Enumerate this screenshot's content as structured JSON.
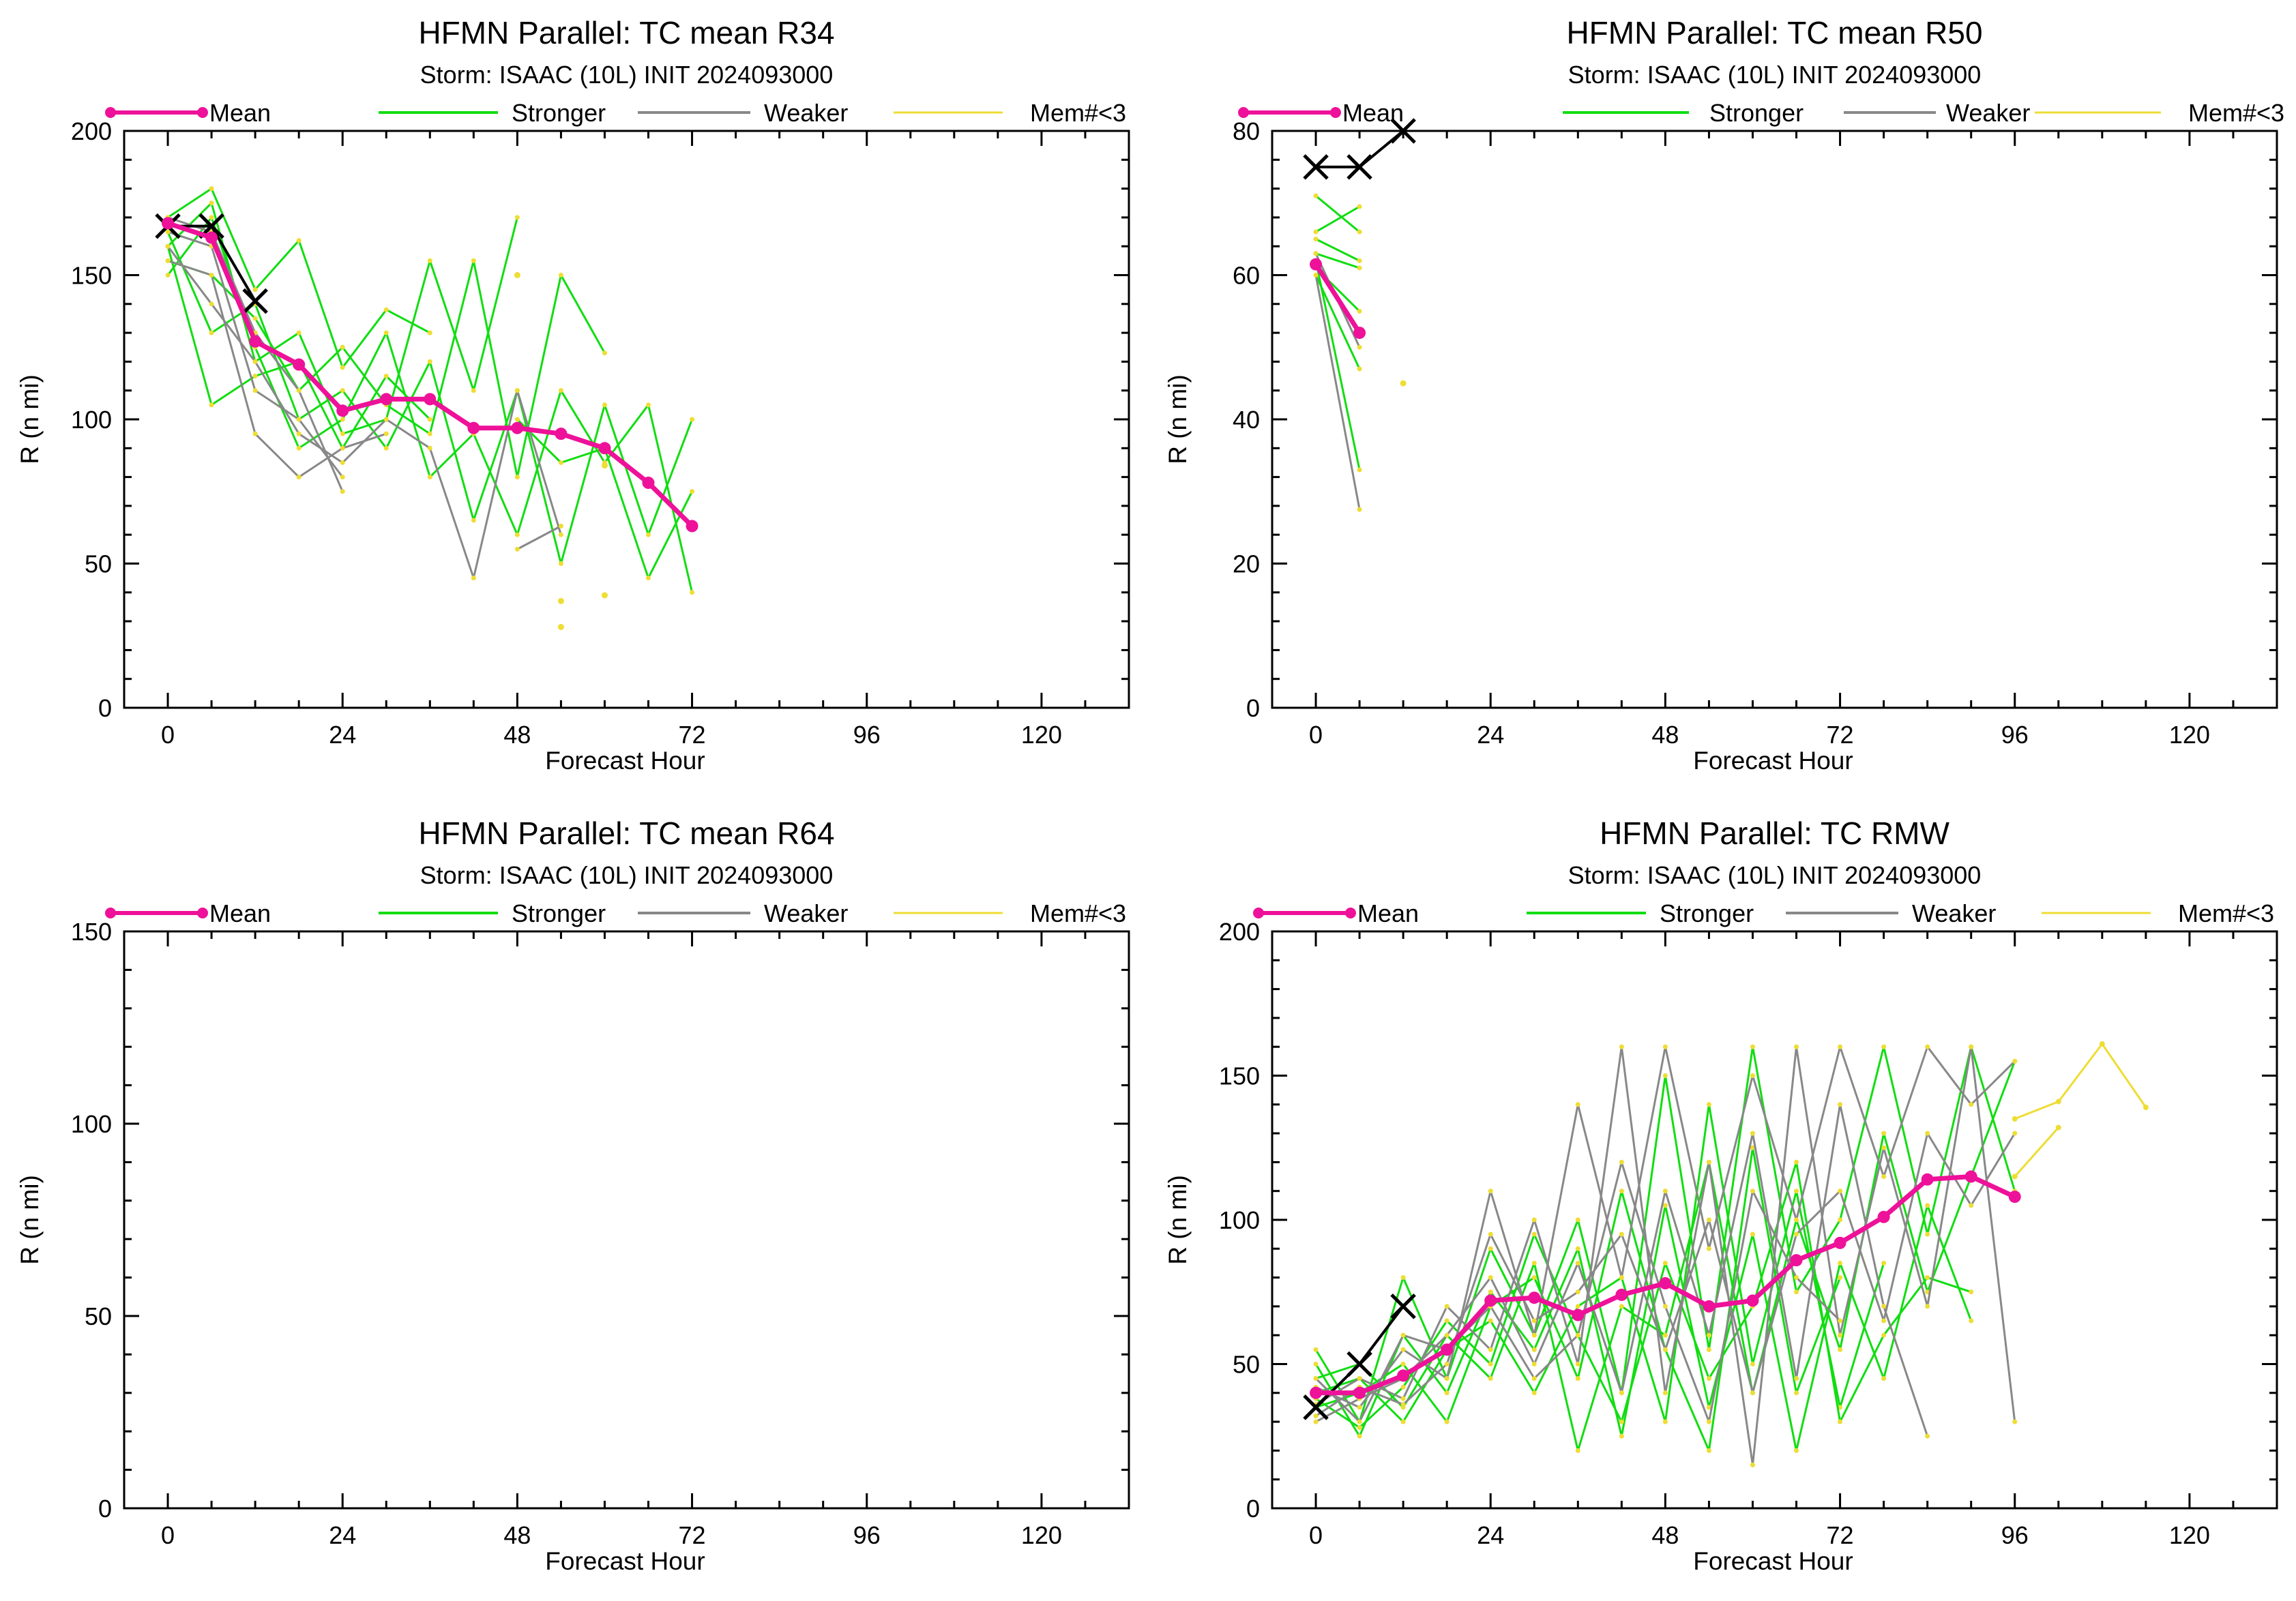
{
  "legend": {
    "mean": "Mean",
    "stronger": "Stronger",
    "weaker": "Weaker",
    "few": "Mem#<3"
  },
  "colors": {
    "mean": "#ee1199",
    "stronger": "#11dd11",
    "weaker": "#888888",
    "few": "#eedd33",
    "observed": "#000000"
  },
  "chart_data": [
    {
      "type": "line",
      "title": "HFMN Parallel: TC mean R34",
      "subtitle": "Storm: ISAAC (10L) INIT 2024093000",
      "xlabel": "Forecast Hour",
      "ylabel": "R (n mi)",
      "xlim": [
        -6,
        132
      ],
      "ylim": [
        0,
        200
      ],
      "xticks": [
        "0",
        "24",
        "48",
        "72",
        "96",
        "120"
      ],
      "yticks": [
        "0",
        "50",
        "100",
        "150",
        "200"
      ],
      "series": [
        {
          "name": "Mean",
          "x": [
            0,
            6,
            12,
            18,
            24,
            30,
            36,
            42,
            48,
            54,
            60,
            66,
            72
          ],
          "y": [
            168,
            163,
            127,
            119,
            103,
            107,
            107,
            97,
            97,
            95,
            90,
            78,
            63
          ]
        }
      ],
      "observed": {
        "x": [
          0,
          6,
          12
        ],
        "y": [
          167,
          167,
          141
        ]
      },
      "members": [
        {
          "color": "stronger",
          "x": [
            0,
            6,
            12,
            18,
            24,
            30,
            36
          ],
          "y": [
            170,
            180,
            145,
            162,
            118,
            138,
            130
          ]
        },
        {
          "color": "stronger",
          "x": [
            0,
            6,
            12,
            18,
            24,
            30,
            36,
            42,
            48
          ],
          "y": [
            160,
            175,
            120,
            130,
            95,
            100,
            155,
            110,
            170
          ]
        },
        {
          "color": "stronger",
          "x": [
            0,
            6,
            12,
            18,
            24,
            30,
            36,
            42,
            48,
            54,
            60
          ],
          "y": [
            155,
            150,
            135,
            110,
            125,
            105,
            95,
            155,
            80,
            150,
            123
          ]
        },
        {
          "color": "stronger",
          "x": [
            0,
            6,
            12,
            18,
            24,
            30,
            36,
            42,
            48,
            54,
            60,
            66,
            72
          ],
          "y": [
            165,
            130,
            140,
            100,
            110,
            90,
            120,
            65,
            110,
            50,
            105,
            60,
            100
          ]
        },
        {
          "color": "stronger",
          "x": [
            0,
            6,
            12,
            18,
            24,
            30,
            36,
            42,
            48,
            54,
            60,
            66,
            72
          ],
          "y": [
            150,
            170,
            125,
            90,
            100,
            130,
            80,
            95,
            60,
            110,
            85,
            105,
            40
          ]
        },
        {
          "color": "stronger",
          "x": [
            0,
            6,
            12,
            18,
            24,
            30,
            36
          ],
          "y": [
            160,
            105,
            115,
            120,
            90,
            115,
            100
          ]
        },
        {
          "color": "stronger",
          "x": [
            48,
            54,
            60,
            66,
            72
          ],
          "y": [
            100,
            85,
            90,
            45,
            75
          ]
        },
        {
          "color": "weaker",
          "x": [
            0,
            6,
            12,
            18,
            24,
            30
          ],
          "y": [
            155,
            150,
            95,
            80,
            90,
            95
          ]
        },
        {
          "color": "weaker",
          "x": [
            0,
            6,
            12,
            18,
            24
          ],
          "y": [
            165,
            160,
            110,
            100,
            80
          ]
        },
        {
          "color": "weaker",
          "x": [
            0,
            6,
            12,
            18,
            24,
            30,
            36,
            42,
            48,
            54
          ],
          "y": [
            160,
            140,
            120,
            95,
            85,
            100,
            90,
            45,
            110,
            60
          ]
        },
        {
          "color": "weaker",
          "x": [
            0,
            6,
            12,
            18,
            24
          ],
          "y": [
            170,
            165,
            130,
            110,
            75
          ]
        },
        {
          "color": "weaker",
          "x": [
            48,
            54
          ],
          "y": [
            55,
            63
          ]
        }
      ],
      "few_points": {
        "x": [
          48,
          54,
          54,
          60,
          60
        ],
        "y": [
          150,
          37,
          28,
          39,
          84
        ]
      }
    },
    {
      "type": "line",
      "title": "HFMN Parallel: TC mean R50",
      "subtitle": "Storm: ISAAC (10L) INIT 2024093000",
      "xlabel": "Forecast Hour",
      "ylabel": "R (n mi)",
      "xlim": [
        -6,
        132
      ],
      "ylim": [
        0,
        80
      ],
      "xticks": [
        "0",
        "24",
        "48",
        "72",
        "96",
        "120"
      ],
      "yticks": [
        "0",
        "20",
        "40",
        "60",
        "80"
      ],
      "series": [
        {
          "name": "Mean",
          "x": [
            0,
            6
          ],
          "y": [
            61.5,
            52
          ]
        }
      ],
      "observed": {
        "x": [
          0,
          6,
          12
        ],
        "y": [
          75,
          75,
          80
        ]
      },
      "members": [
        {
          "color": "stronger",
          "x": [
            0,
            6
          ],
          "y": [
            71,
            66
          ]
        },
        {
          "color": "stronger",
          "x": [
            0,
            6
          ],
          "y": [
            66,
            69.5
          ]
        },
        {
          "color": "stronger",
          "x": [
            0,
            6
          ],
          "y": [
            65,
            62
          ]
        },
        {
          "color": "stronger",
          "x": [
            0,
            6
          ],
          "y": [
            63,
            61
          ]
        },
        {
          "color": "stronger",
          "x": [
            0,
            6
          ],
          "y": [
            61,
            55
          ]
        },
        {
          "color": "stronger",
          "x": [
            0,
            6
          ],
          "y": [
            60,
            47
          ]
        },
        {
          "color": "stronger",
          "x": [
            0,
            6
          ],
          "y": [
            62,
            33
          ]
        },
        {
          "color": "weaker",
          "x": [
            0,
            6
          ],
          "y": [
            60,
            27.5
          ]
        },
        {
          "color": "weaker",
          "x": [
            0,
            6
          ],
          "y": [
            63,
            50
          ]
        }
      ],
      "few_points": {
        "x": [
          12
        ],
        "y": [
          45
        ]
      }
    },
    {
      "type": "line",
      "title": "HFMN Parallel: TC mean R64",
      "subtitle": "Storm: ISAAC (10L) INIT 2024093000",
      "xlabel": "Forecast Hour",
      "ylabel": "R (n mi)",
      "xlim": [
        -6,
        132
      ],
      "ylim": [
        0,
        150
      ],
      "xticks": [
        "0",
        "24",
        "48",
        "72",
        "96",
        "120"
      ],
      "yticks": [
        "0",
        "50",
        "100",
        "150"
      ],
      "series": [],
      "observed": {
        "x": [],
        "y": []
      },
      "members": [],
      "few_points": {
        "x": [],
        "y": []
      }
    },
    {
      "type": "line",
      "title": "HFMN Parallel: TC RMW",
      "subtitle": "Storm: ISAAC (10L) INIT 2024093000",
      "xlabel": "Forecast Hour",
      "ylabel": "R (n mi)",
      "xlim": [
        -6,
        132
      ],
      "ylim": [
        0,
        200
      ],
      "xticks": [
        "0",
        "24",
        "48",
        "72",
        "96",
        "120"
      ],
      "yticks": [
        "0",
        "50",
        "100",
        "150",
        "200"
      ],
      "series": [
        {
          "name": "Mean",
          "x": [
            0,
            6,
            12,
            18,
            24,
            30,
            36,
            42,
            48,
            54,
            60,
            66,
            72,
            78,
            84,
            90,
            96
          ],
          "y": [
            40,
            40,
            46,
            55,
            72,
            73,
            67,
            74,
            78,
            70,
            72,
            86,
            92,
            101,
            114,
            115,
            108
          ]
        }
      ],
      "observed": {
        "x": [
          0,
          6,
          12
        ],
        "y": [
          35,
          50,
          70
        ]
      },
      "members": [
        {
          "color": "stronger",
          "x": [
            0,
            6,
            12,
            18,
            24,
            30,
            36,
            42,
            48,
            54,
            60,
            66,
            72,
            78,
            84,
            90,
            96
          ],
          "y": [
            55,
            30,
            80,
            45,
            90,
            60,
            100,
            40,
            150,
            55,
            160,
            75,
            100,
            160,
            95,
            160,
            110
          ]
        },
        {
          "color": "stronger",
          "x": [
            0,
            6,
            12,
            18,
            24,
            30,
            36,
            42,
            48,
            54,
            60,
            66,
            72,
            78,
            84,
            90,
            96
          ],
          "y": [
            45,
            50,
            35,
            60,
            45,
            85,
            20,
            70,
            60,
            120,
            40,
            100,
            55,
            130,
            75,
            115,
            155
          ]
        },
        {
          "color": "stronger",
          "x": [
            0,
            6,
            12,
            18,
            24,
            30,
            36,
            42,
            48,
            54,
            60,
            66,
            72,
            78,
            84,
            90
          ],
          "y": [
            50,
            25,
            60,
            40,
            75,
            55,
            90,
            25,
            105,
            35,
            95,
            20,
            85,
            45,
            105,
            65
          ]
        },
        {
          "color": "stronger",
          "x": [
            0,
            6,
            12,
            18,
            24,
            30,
            36,
            42,
            48,
            54,
            60,
            66,
            72,
            78
          ],
          "y": [
            40,
            45,
            30,
            55,
            65,
            40,
            70,
            80,
            30,
            140,
            50,
            110,
            35,
            85
          ]
        },
        {
          "color": "stronger",
          "x": [
            0,
            6,
            12,
            18,
            24,
            30,
            36,
            42,
            48,
            54,
            60,
            66,
            72
          ],
          "y": [
            35,
            40,
            50,
            30,
            70,
            80,
            45,
            110,
            55,
            20,
            125,
            40,
            80
          ]
        },
        {
          "color": "stronger",
          "x": [
            0,
            6,
            12,
            18,
            24,
            30,
            36,
            42,
            48,
            54,
            60,
            66,
            72,
            78,
            84,
            90
          ],
          "y": [
            38,
            28,
            42,
            65,
            50,
            95,
            60,
            30,
            85,
            45,
            70,
            120,
            30,
            60,
            80,
            75
          ]
        },
        {
          "color": "weaker",
          "x": [
            0,
            6,
            12,
            18,
            24,
            30,
            36,
            42,
            48,
            54,
            60,
            66,
            72,
            78,
            84,
            90,
            96
          ],
          "y": [
            42,
            35,
            55,
            45,
            110,
            60,
            140,
            80,
            160,
            90,
            150,
            100,
            160,
            115,
            160,
            140,
            155
          ]
        },
        {
          "color": "weaker",
          "x": [
            0,
            6,
            12,
            18,
            24,
            30,
            36,
            42,
            48,
            54,
            60,
            66,
            72,
            78,
            84,
            90,
            96
          ],
          "y": [
            36,
            45,
            38,
            70,
            55,
            100,
            50,
            160,
            40,
            120,
            15,
            160,
            60,
            125,
            70,
            160,
            30
          ]
        },
        {
          "color": "weaker",
          "x": [
            0,
            6,
            12,
            18,
            24,
            30,
            36,
            42,
            48,
            54,
            60,
            66,
            72,
            78,
            84
          ],
          "y": [
            30,
            38,
            45,
            60,
            80,
            50,
            85,
            40,
            110,
            60,
            130,
            45,
            140,
            70,
            25
          ]
        },
        {
          "color": "weaker",
          "x": [
            0,
            6,
            12,
            18,
            24,
            30,
            36,
            42,
            48,
            54,
            60,
            66,
            72,
            78,
            84,
            90,
            96
          ],
          "y": [
            32,
            42,
            36,
            50,
            95,
            65,
            75,
            95,
            55,
            100,
            40,
            95,
            110,
            65,
            130,
            105,
            130
          ]
        },
        {
          "color": "weaker",
          "x": [
            0,
            6,
            12,
            18,
            24,
            30,
            36,
            42,
            48,
            54,
            60,
            66,
            72
          ],
          "y": [
            45,
            30,
            60,
            55,
            70,
            45,
            60,
            120,
            70,
            30,
            110,
            80,
            65
          ]
        }
      ],
      "few_lines": [
        {
          "x": [
            96,
            102,
            108,
            114
          ],
          "y": [
            135,
            141,
            161,
            139
          ]
        },
        {
          "x": [
            96,
            102
          ],
          "y": [
            115,
            132
          ]
        }
      ],
      "few_points": {
        "x": [],
        "y": []
      }
    }
  ]
}
